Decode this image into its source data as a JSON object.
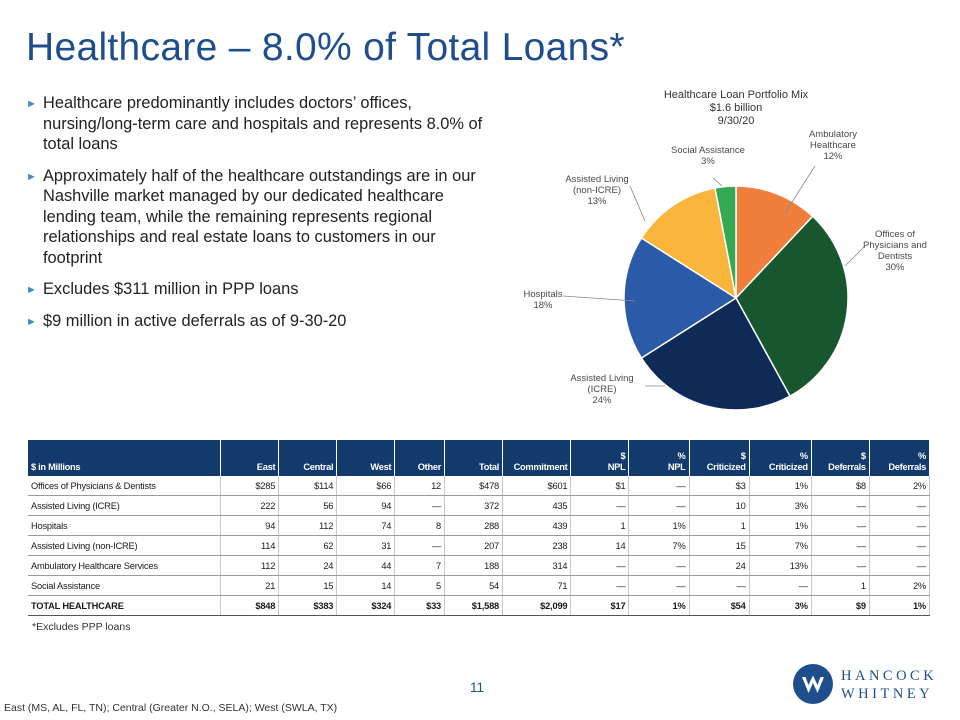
{
  "title": "Healthcare – 8.0% of Total Loans*",
  "bullets": [
    "Healthcare predominantly includes doctors’ offices, nursing/long-term care and hospitals and represents 8.0% of total loans",
    "Approximately half of the healthcare outstandings are in our Nashville market managed by our dedicated healthcare lending team, while the remaining represents regional relationships and real estate loans to customers in our footprint",
    "Excludes $311 million in PPP loans",
    "$9 million in active deferrals as of 9-30-20"
  ],
  "bullet_icon": "triangle-right-icon",
  "chart_data": {
    "type": "pie",
    "title": [
      "Healthcare Loan Portfolio Mix",
      "$1.6 billion",
      "9/30/20"
    ],
    "slices": [
      {
        "label": [
          "Ambulatory",
          "Healthcare",
          "12%"
        ],
        "value": 12,
        "color": "#f07f3c"
      },
      {
        "label": [
          "Offices of",
          "Physicians and",
          "Dentists",
          "30%"
        ],
        "value": 30,
        "color": "#17562e"
      },
      {
        "label": [
          "Assisted Living",
          "(ICRE)",
          "24%"
        ],
        "value": 24,
        "color": "#0e2a57"
      },
      {
        "label": [
          "Hospitals",
          "18%"
        ],
        "value": 18,
        "color": "#2b5aa8"
      },
      {
        "label": [
          "Assisted Living",
          "(non-ICRE)",
          "13%"
        ],
        "value": 13,
        "color": "#f9b53c"
      },
      {
        "label": [
          "Social Assistance",
          "3%"
        ],
        "value": 3,
        "color": "#35a852"
      }
    ]
  },
  "table": {
    "headers": [
      {
        "text": "$ in Millions"
      },
      {
        "text": "East"
      },
      {
        "text": "Central"
      },
      {
        "text": "West"
      },
      {
        "text": "Other"
      },
      {
        "text": "Total"
      },
      {
        "text": "Commitment"
      },
      {
        "text": "$\nNPL"
      },
      {
        "text": "%\nNPL"
      },
      {
        "text": "$\nCriticized"
      },
      {
        "text": "%\nCriticized"
      },
      {
        "text": "$\nDeferrals"
      },
      {
        "text": "%\nDeferrals"
      }
    ],
    "rows": [
      [
        "Offices of Physicians & Dentists",
        "$285",
        "$114",
        "$66",
        "12",
        "$478",
        "$601",
        "$1",
        "—",
        "$3",
        "1%",
        "$8",
        "2%"
      ],
      [
        "Assisted Living (ICRE)",
        "222",
        "56",
        "94",
        "—",
        "372",
        "435",
        "—",
        "—",
        "10",
        "3%",
        "—",
        "—"
      ],
      [
        "Hospitals",
        "94",
        "112",
        "74",
        "8",
        "288",
        "439",
        "1",
        "1%",
        "1",
        "1%",
        "—",
        "—"
      ],
      [
        "Assisted Living (non-ICRE)",
        "114",
        "62",
        "31",
        "—",
        "207",
        "238",
        "14",
        "7%",
        "15",
        "7%",
        "—",
        "—"
      ],
      [
        "Ambulatory Healthcare Services",
        "112",
        "24",
        "44",
        "7",
        "188",
        "314",
        "—",
        "—",
        "24",
        "13%",
        "—",
        "—"
      ],
      [
        "Social Assistance",
        "21",
        "15",
        "14",
        "5",
        "54",
        "71",
        "—",
        "—",
        "—",
        "—",
        "1",
        "2%"
      ]
    ],
    "total": [
      "TOTAL HEALTHCARE",
      "$848",
      "$383",
      "$324",
      "$33",
      "$1,588",
      "$2,099",
      "$17",
      "1%",
      "$54",
      "3%",
      "$9",
      "1%"
    ]
  },
  "footnote": "*Excludes PPP loans",
  "page_number": "11",
  "bottom_note": "East (MS, AL, FL, TN); Central (Greater N.O., SELA); West (SWLA, TX)",
  "logo": {
    "line1": "HANCOCK",
    "line2": "WHITNEY",
    "icon": "hancock-whitney-logo-icon"
  },
  "colors": {
    "title": "#1f4e8c",
    "table_header": "#123a6c",
    "bullet": "#4a86c8"
  }
}
